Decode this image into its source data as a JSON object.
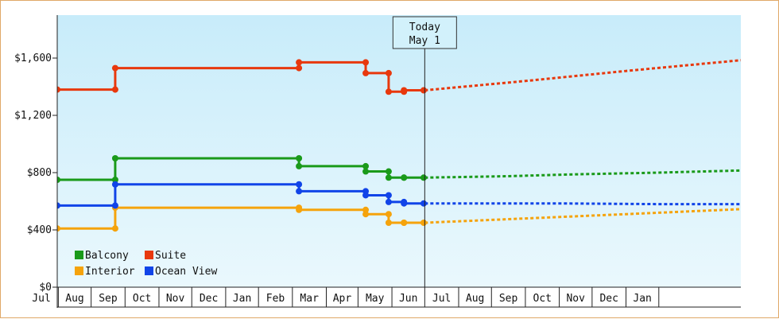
{
  "chart_data": {
    "type": "line",
    "title": "",
    "xlabel": "",
    "ylabel": "",
    "ylim": [
      0,
      1900
    ],
    "y_ticks": [
      {
        "value": 0,
        "label": "$0"
      },
      {
        "value": 400,
        "label": "$400"
      },
      {
        "value": 800,
        "label": "$800"
      },
      {
        "value": 1200,
        "label": "$1,200"
      },
      {
        "value": 1600,
        "label": "$1,600"
      }
    ],
    "x_months": [
      "Jul",
      "Aug",
      "Sep",
      "Oct",
      "Nov",
      "Dec",
      "Jan",
      "Feb",
      "Mar",
      "Apr",
      "May",
      "Jun",
      "Jul",
      "Aug",
      "Sep",
      "Oct",
      "Nov",
      "Dec",
      "Jan"
    ],
    "x_range": [
      "2023-05-31",
      "2025-02-14"
    ],
    "today": {
      "date": "2024-05-01",
      "line1": "Today",
      "line2": "May 1"
    },
    "legend_position": "bottom-left",
    "grid": false,
    "series": [
      {
        "name": "Balcony",
        "color": "#1a9a1a",
        "points": [
          [
            "2023-05-31",
            750
          ],
          [
            "2023-07-23",
            750
          ],
          [
            "2023-07-23",
            900
          ],
          [
            "2024-01-07",
            900
          ],
          [
            "2024-01-07",
            845
          ],
          [
            "2024-03-08",
            845
          ],
          [
            "2024-03-08",
            808
          ],
          [
            "2024-03-29",
            808
          ],
          [
            "2024-03-29",
            765
          ],
          [
            "2024-04-12",
            765
          ],
          [
            "2024-04-12",
            765
          ],
          [
            "2024-04-30",
            765
          ]
        ],
        "forecast": [
          [
            "2024-05-01",
            765
          ],
          [
            "2024-07-15",
            775
          ],
          [
            "2024-09-15",
            788
          ],
          [
            "2024-12-01",
            800
          ],
          [
            "2025-02-14",
            815
          ]
        ]
      },
      {
        "name": "Suite",
        "color": "#e8380d",
        "points": [
          [
            "2023-05-31",
            1380
          ],
          [
            "2023-07-23",
            1380
          ],
          [
            "2023-07-23",
            1530
          ],
          [
            "2024-01-07",
            1530
          ],
          [
            "2024-01-07",
            1570
          ],
          [
            "2024-03-08",
            1570
          ],
          [
            "2024-03-08",
            1495
          ],
          [
            "2024-03-29",
            1495
          ],
          [
            "2024-03-29",
            1365
          ],
          [
            "2024-04-12",
            1365
          ],
          [
            "2024-04-12",
            1375
          ],
          [
            "2024-04-30",
            1375
          ]
        ],
        "forecast": [
          [
            "2024-05-01",
            1375
          ],
          [
            "2024-08-01",
            1440
          ],
          [
            "2024-11-01",
            1510
          ],
          [
            "2025-02-14",
            1585
          ]
        ]
      },
      {
        "name": "Interior",
        "color": "#f5a30c",
        "points": [
          [
            "2023-05-31",
            410
          ],
          [
            "2023-07-23",
            410
          ],
          [
            "2023-07-23",
            555
          ],
          [
            "2024-01-07",
            555
          ],
          [
            "2024-01-07",
            540
          ],
          [
            "2024-03-08",
            540
          ],
          [
            "2024-03-08",
            510
          ],
          [
            "2024-03-29",
            510
          ],
          [
            "2024-03-29",
            450
          ],
          [
            "2024-04-12",
            450
          ],
          [
            "2024-04-12",
            450
          ],
          [
            "2024-04-30",
            450
          ]
        ],
        "forecast": [
          [
            "2024-05-01",
            450
          ],
          [
            "2024-08-01",
            480
          ],
          [
            "2024-11-01",
            510
          ],
          [
            "2025-02-14",
            545
          ]
        ]
      },
      {
        "name": "Ocean View",
        "color": "#1144e8",
        "points": [
          [
            "2023-05-31",
            570
          ],
          [
            "2023-07-23",
            570
          ],
          [
            "2023-07-23",
            718
          ],
          [
            "2024-01-07",
            718
          ],
          [
            "2024-01-07",
            670
          ],
          [
            "2024-03-08",
            670
          ],
          [
            "2024-03-08",
            642
          ],
          [
            "2024-03-29",
            642
          ],
          [
            "2024-03-29",
            595
          ],
          [
            "2024-04-12",
            595
          ],
          [
            "2024-04-12",
            585
          ],
          [
            "2024-04-30",
            585
          ]
        ],
        "forecast": [
          [
            "2024-05-01",
            585
          ],
          [
            "2024-09-01",
            585
          ],
          [
            "2024-12-01",
            580
          ],
          [
            "2025-02-14",
            580
          ]
        ]
      }
    ],
    "colors": {
      "plot_top": "#c8ecfa",
      "plot_bottom": "#eaf8fd",
      "axis": "#222222",
      "frame": "#e0a868"
    }
  }
}
